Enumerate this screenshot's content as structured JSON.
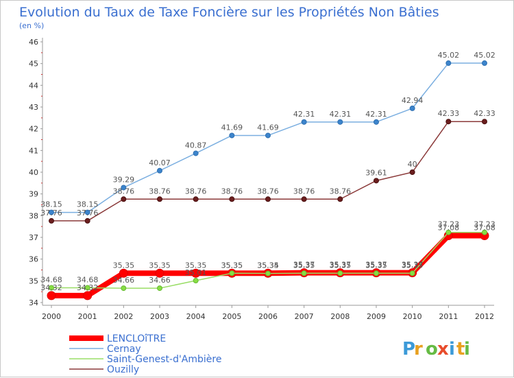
{
  "chart_data": {
    "type": "line",
    "title": "Evolution du Taux de Taxe Foncière sur les Propriétés Non Bâties",
    "subtitle": "(en %)",
    "x": [
      2000,
      2001,
      2002,
      2003,
      2004,
      2005,
      2006,
      2007,
      2008,
      2009,
      2010,
      2011,
      2012
    ],
    "ylim": [
      34,
      46
    ],
    "yticks": [
      34,
      35,
      36,
      37,
      38,
      39,
      40,
      41,
      42,
      43,
      44,
      45,
      46
    ],
    "grid": false,
    "legend_position": "bottom-left",
    "series": [
      {
        "name": "LENCLOîTRE",
        "color": "#ff0000",
        "values": [
          34.32,
          34.32,
          35.35,
          35.35,
          35.35,
          35.35,
          35.35,
          35.37,
          35.37,
          35.37,
          35.37,
          37.08,
          37.08
        ]
      },
      {
        "name": "Cernay",
        "color": "#7aaee0",
        "values": [
          38.15,
          38.15,
          39.29,
          40.07,
          40.87,
          41.69,
          41.69,
          42.31,
          42.31,
          42.31,
          42.94,
          45.02,
          45.02
        ]
      },
      {
        "name": "Saint-Genest-d'Ambière",
        "color": "#99dd66",
        "values": [
          34.68,
          34.68,
          34.66,
          34.66,
          35.01,
          35.35,
          35.34,
          35.35,
          35.35,
          35.35,
          35.35,
          37.23,
          37.23
        ]
      },
      {
        "name": "Ouzilly",
        "color": "#8b3a3a",
        "values": [
          37.76,
          37.76,
          38.76,
          38.76,
          38.76,
          38.76,
          38.76,
          38.76,
          38.76,
          39.61,
          40,
          42.33,
          42.33
        ]
      }
    ]
  },
  "logo": {
    "letters": [
      "P",
      "r",
      "o",
      "x",
      "i",
      "t",
      "i"
    ],
    "colors": [
      "#3c9ad8",
      "#e8a020",
      "#66bb44",
      "#e84c2c",
      "#3c9ad8",
      "#e8a020",
      "#66bb44"
    ]
  }
}
